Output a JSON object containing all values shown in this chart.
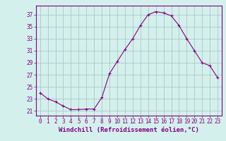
{
  "x": [
    0,
    1,
    2,
    3,
    4,
    5,
    6,
    7,
    8,
    9,
    10,
    11,
    12,
    13,
    14,
    15,
    16,
    17,
    18,
    19,
    20,
    21,
    22,
    23
  ],
  "y": [
    24.0,
    23.0,
    22.5,
    21.8,
    21.2,
    21.2,
    21.3,
    21.3,
    23.2,
    27.2,
    29.2,
    31.2,
    33.0,
    35.2,
    37.0,
    37.5,
    37.3,
    36.8,
    35.2,
    33.0,
    31.0,
    29.0,
    28.5,
    26.5
  ],
  "line_color": "#800080",
  "marker": "+",
  "marker_size": 3,
  "bg_color": "#d4f0ec",
  "grid_color": "#aac8c4",
  "xlabel": "Windchill (Refroidissement éolien,°C)",
  "ylabel_ticks": [
    21,
    23,
    25,
    27,
    29,
    31,
    33,
    35,
    37
  ],
  "ylim": [
    20.2,
    38.5
  ],
  "xlim": [
    -0.5,
    23.5
  ],
  "xticks": [
    0,
    1,
    2,
    3,
    4,
    5,
    6,
    7,
    8,
    9,
    10,
    11,
    12,
    13,
    14,
    15,
    16,
    17,
    18,
    19,
    20,
    21,
    22,
    23
  ],
  "tick_fontsize": 5.5,
  "label_fontsize": 6.5,
  "axis_color": "#800080",
  "spine_color": "#800080"
}
